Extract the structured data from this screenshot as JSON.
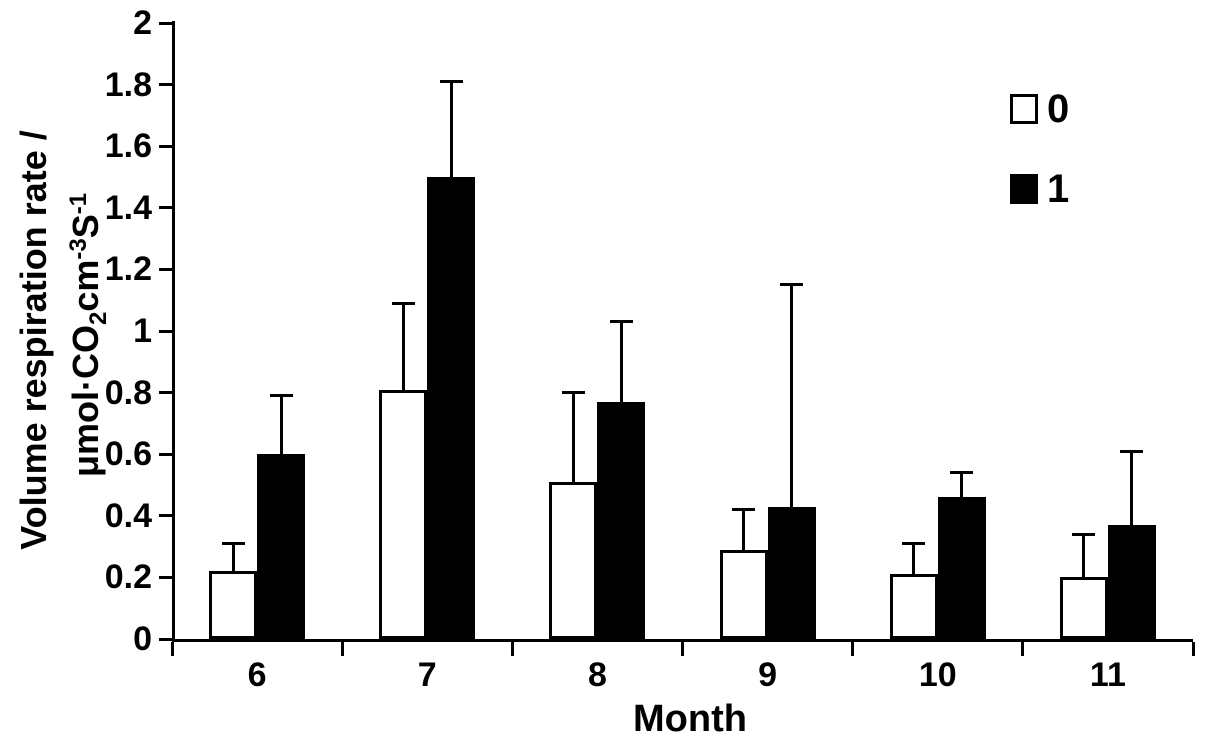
{
  "chart_data": {
    "type": "bar",
    "title": "",
    "xlabel": "Month",
    "ylabel": "Volume respiration rate / μmol·CO2cm-3S-1",
    "ylabel_line1": "Volume respiration rate /",
    "ylabel_line2_parts": {
      "p1": "μmol·CO",
      "sub1": "2",
      "p2": "cm",
      "sup1": "-3",
      "p3": "S",
      "sup2": "-1"
    },
    "categories": [
      "6",
      "7",
      "8",
      "9",
      "10",
      "11"
    ],
    "series": [
      {
        "name": "0",
        "fill": "#ffffff",
        "border": "#000000",
        "values": [
          0.22,
          0.81,
          0.51,
          0.29,
          0.21,
          0.2
        ],
        "error_cap_values": [
          0.31,
          1.09,
          0.8,
          0.42,
          0.31,
          0.34
        ]
      },
      {
        "name": "1",
        "fill": "#000000",
        "border": "#000000",
        "values": [
          0.6,
          1.5,
          0.77,
          0.43,
          0.46,
          0.37
        ],
        "error_cap_values": [
          0.79,
          1.81,
          1.03,
          1.15,
          0.54,
          0.61
        ]
      }
    ],
    "error_bars": "upper-only",
    "ylim": [
      0,
      2
    ],
    "ytick_values": [
      0,
      0.2,
      0.4,
      0.6,
      0.8,
      1,
      1.2,
      1.4,
      1.6,
      1.8,
      2
    ],
    "ytick_labels": [
      "0",
      "0.2",
      "0.4",
      "0.6",
      "0.8",
      "1",
      "1.2",
      "1.4",
      "1.6",
      "1.8",
      "2"
    ],
    "grid": false,
    "legend": {
      "position": "top-right",
      "items": [
        {
          "label": "0",
          "fill": "#ffffff"
        },
        {
          "label": "1",
          "fill": "#000000"
        }
      ]
    },
    "colors": {
      "axis": "#000000",
      "background": "#ffffff"
    }
  }
}
